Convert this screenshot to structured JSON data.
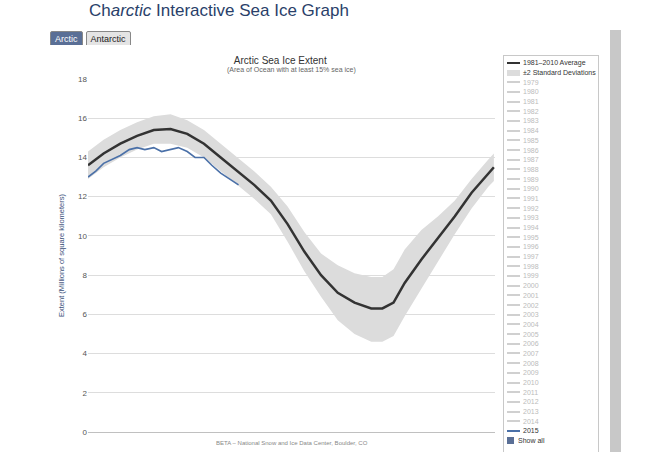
{
  "page": {
    "heading": "Charctic Interactive Sea Ice Graph",
    "heading_italic": "arctic",
    "buttons": [
      "Arctic",
      "Antarctic"
    ],
    "show_all": "Show all"
  },
  "chart_data": {
    "type": "line",
    "title": "Arctic Sea Ice Extent",
    "subtitle": "(Area of Ocean with at least 15% sea ice)",
    "y_label": "Extent (Millions of square kilometers)",
    "footer": "BETA – National Snow and Ice Data Center, Boulder, CO",
    "xlim": [
      1,
      366
    ],
    "ylim": [
      0,
      18
    ],
    "yticks": [
      0,
      2,
      4,
      6,
      8,
      10,
      12,
      14,
      16,
      18
    ],
    "grid": true,
    "tick_labels": "y",
    "x": [
      1,
      15,
      30,
      45,
      60,
      75,
      90,
      105,
      120,
      135,
      150,
      165,
      180,
      195,
      210,
      225,
      240,
      255,
      265,
      275,
      285,
      300,
      315,
      330,
      345,
      360,
      365
    ],
    "series": [
      {
        "name": "1981–2010 Average",
        "color": "#333333",
        "values": [
          13.6,
          14.2,
          14.7,
          15.1,
          15.4,
          15.45,
          15.2,
          14.7,
          14.0,
          13.3,
          12.6,
          11.8,
          10.6,
          9.2,
          8.0,
          7.1,
          6.6,
          6.3,
          6.3,
          6.6,
          7.6,
          8.8,
          9.9,
          11.0,
          12.2,
          13.2,
          13.5
        ]
      },
      {
        "name": "2015",
        "color": "#4a70a8",
        "x": [
          1,
          8,
          15,
          22,
          30,
          38,
          45,
          52,
          60,
          67,
          75,
          82,
          90,
          97,
          105,
          112,
          120,
          128,
          136
        ],
        "values": [
          13.0,
          13.3,
          13.7,
          13.9,
          14.1,
          14.4,
          14.5,
          14.4,
          14.5,
          14.3,
          14.4,
          14.5,
          14.3,
          14.0,
          14.0,
          13.6,
          13.2,
          12.9,
          12.6
        ]
      }
    ],
    "band": {
      "name": "±2 Standard Deviations",
      "color": "#dcdcdc",
      "upper": [
        14.3,
        14.9,
        15.4,
        15.8,
        16.1,
        16.2,
        15.9,
        15.4,
        14.7,
        14.0,
        13.3,
        12.5,
        11.5,
        10.2,
        9.1,
        8.5,
        8.1,
        7.9,
        7.9,
        8.3,
        9.3,
        10.3,
        11.0,
        11.8,
        12.9,
        13.9,
        14.2
      ],
      "lower": [
        12.9,
        13.5,
        14.0,
        14.4,
        14.7,
        14.7,
        14.5,
        14.0,
        13.3,
        12.6,
        11.9,
        11.1,
        9.7,
        8.2,
        6.9,
        5.7,
        5.0,
        4.6,
        4.6,
        4.9,
        5.9,
        7.3,
        8.7,
        10.1,
        11.4,
        12.5,
        12.8
      ]
    },
    "legend_only": [
      "1979",
      "1980",
      "1981",
      "1982",
      "1983",
      "1984",
      "1985",
      "1986",
      "1987",
      "1988",
      "1989",
      "1990",
      "1991",
      "1992",
      "1993",
      "1994",
      "1995",
      "1996",
      "1997",
      "1998",
      "1999",
      "2000",
      "2001",
      "2002",
      "2003",
      "2004",
      "2005",
      "2006",
      "2007",
      "2008",
      "2009",
      "2010",
      "2011",
      "2012",
      "2013",
      "2014"
    ]
  }
}
